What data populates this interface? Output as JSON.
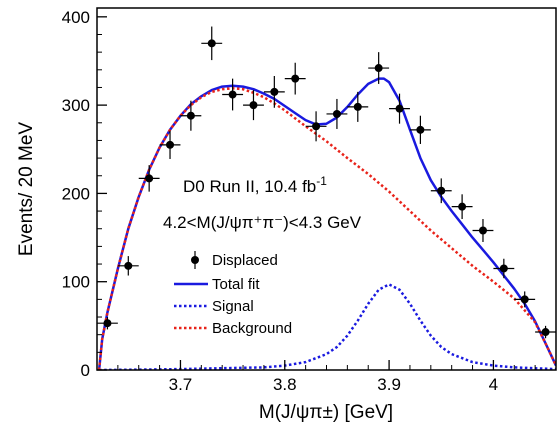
{
  "chart_data": {
    "type": "scatter",
    "xlabel": "M(J/ψπ±) [GeV]",
    "ylabel": "Events/ 20 MeV",
    "xlim": [
      3.62,
      4.06
    ],
    "ylim": [
      0,
      410
    ],
    "x_ticks": [
      3.7,
      3.8,
      3.9,
      4.0
    ],
    "x_tick_labels": [
      "3.7",
      "3.8",
      "3.9",
      "4"
    ],
    "y_ticks": [
      0,
      100,
      200,
      300,
      400
    ],
    "y_tick_labels": [
      "0",
      "100",
      "200",
      "300",
      "400"
    ],
    "annotations": {
      "experiment_prefix": "D0 Run II, 10.4 fb",
      "experiment_superscript": "-1",
      "mass_window": "4.2<M(J/ψπ⁺π⁻)<4.3 GeV"
    },
    "legend_placement": "center-left",
    "series": [
      {
        "name": "Displaced",
        "kind": "points",
        "color": "#000000",
        "x": [
          3.63,
          3.65,
          3.67,
          3.69,
          3.71,
          3.73,
          3.75,
          3.77,
          3.79,
          3.81,
          3.83,
          3.85,
          3.87,
          3.89,
          3.91,
          3.93,
          3.95,
          3.97,
          3.99,
          4.01,
          4.03,
          4.05
        ],
        "y": [
          53,
          118,
          217,
          255,
          288,
          370,
          312,
          300,
          315,
          330,
          276,
          290,
          298,
          342,
          296,
          272,
          203,
          185,
          158,
          115,
          80,
          43
        ],
        "yerr": [
          7,
          11,
          15,
          16,
          17,
          19,
          18,
          17,
          18,
          18,
          17,
          17,
          17,
          18,
          17,
          16,
          14,
          14,
          13,
          11,
          9,
          7
        ],
        "xerr": 0.01
      },
      {
        "name": "Total fit",
        "kind": "line",
        "color": "#1a1adf",
        "style": "solid",
        "x": [
          3.622,
          3.625,
          3.63,
          3.64,
          3.65,
          3.66,
          3.67,
          3.68,
          3.69,
          3.7,
          3.71,
          3.72,
          3.73,
          3.74,
          3.75,
          3.76,
          3.77,
          3.78,
          3.79,
          3.8,
          3.81,
          3.82,
          3.83,
          3.84,
          3.85,
          3.86,
          3.87,
          3.88,
          3.89,
          3.895,
          3.9,
          3.91,
          3.92,
          3.93,
          3.94,
          3.95,
          3.96,
          3.97,
          3.98,
          3.99,
          4.0,
          4.01,
          4.02,
          4.03,
          4.04,
          4.05,
          4.06
        ],
        "y": [
          0,
          35,
          65,
          115,
          160,
          196,
          227,
          252,
          272,
          288,
          301,
          310,
          317,
          321,
          322,
          321,
          318,
          313,
          307,
          299,
          291,
          283,
          278,
          279,
          286,
          298,
          312,
          324,
          330,
          330,
          326,
          305,
          272,
          240,
          215,
          196,
          180,
          165,
          150,
          136,
          122,
          107,
          92,
          75,
          55,
          30,
          5
        ]
      },
      {
        "name": "Signal",
        "kind": "line",
        "color": "#1a1adf",
        "style": "dotted",
        "x": [
          3.622,
          3.66,
          3.7,
          3.74,
          3.78,
          3.8,
          3.82,
          3.84,
          3.85,
          3.86,
          3.87,
          3.88,
          3.89,
          3.9,
          3.91,
          3.92,
          3.93,
          3.94,
          3.95,
          3.96,
          3.98,
          4.0,
          4.02,
          4.06
        ],
        "y": [
          0,
          0.5,
          1,
          2,
          3,
          5,
          9,
          18,
          26,
          39,
          56,
          75,
          91,
          97,
          91,
          75,
          56,
          39,
          26,
          18,
          9,
          5,
          3,
          1
        ]
      },
      {
        "name": "Background",
        "kind": "line",
        "color": "#e8231a",
        "style": "dotted",
        "x": [
          3.622,
          3.625,
          3.63,
          3.64,
          3.65,
          3.66,
          3.67,
          3.68,
          3.69,
          3.7,
          3.71,
          3.72,
          3.73,
          3.74,
          3.75,
          3.76,
          3.77,
          3.78,
          3.79,
          3.8,
          3.82,
          3.84,
          3.86,
          3.88,
          3.9,
          3.92,
          3.94,
          3.96,
          3.98,
          4.0,
          4.02,
          4.04,
          4.05,
          4.06
        ],
        "y": [
          0,
          35,
          65,
          115,
          160,
          196,
          227,
          252,
          272,
          288,
          300,
          309,
          315,
          318,
          319,
          318,
          314,
          309,
          302,
          294,
          276,
          259,
          240,
          222,
          202,
          180,
          158,
          138,
          118,
          100,
          81,
          54,
          30,
          5
        ]
      }
    ]
  }
}
